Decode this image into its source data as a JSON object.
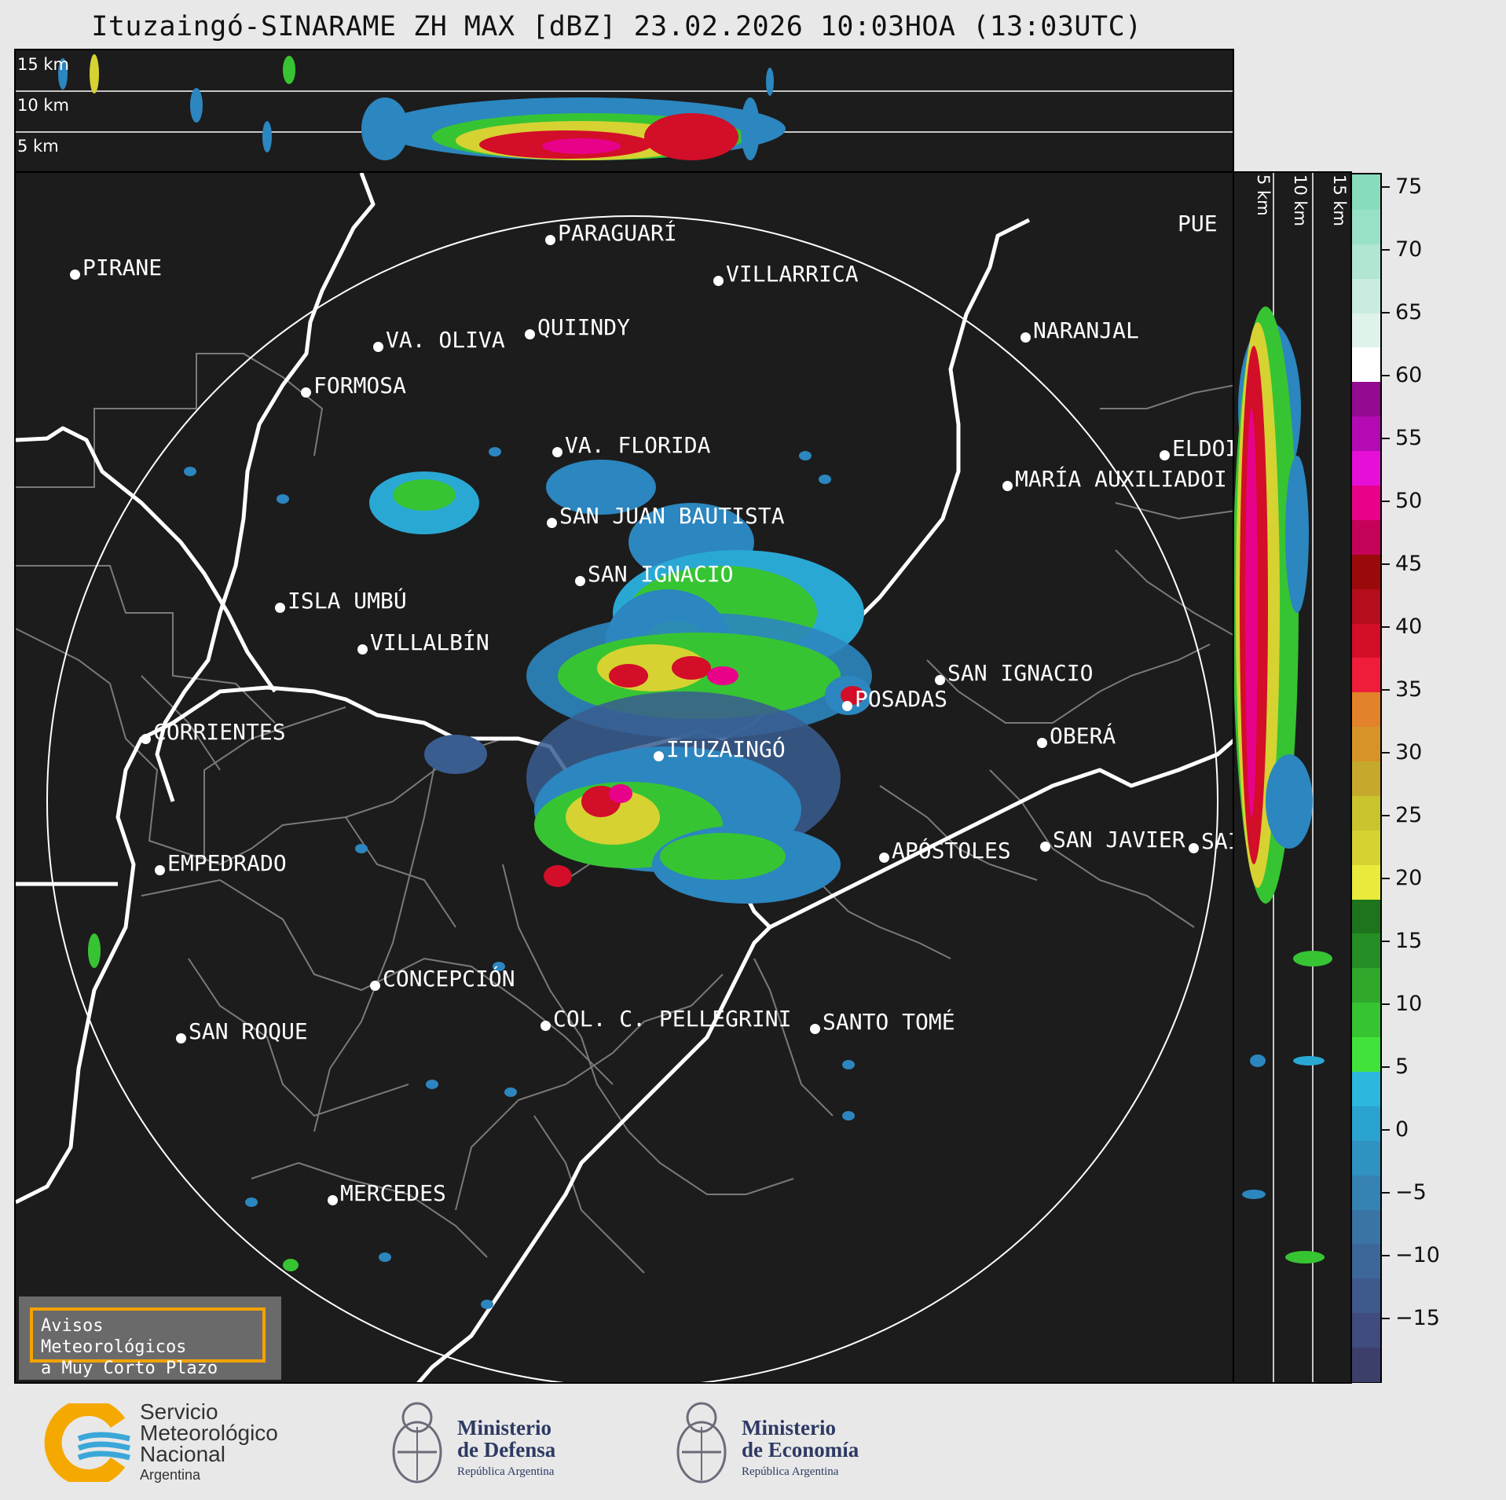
{
  "title": "Ituzaingó-SINARAME ZH MAX [dBZ] 23.02.2026 10:03HOA (13:03UTC)",
  "top_panel": {
    "height_labels": [
      "15 km",
      "10 km",
      "5 km"
    ]
  },
  "side_panel": {
    "height_labels": [
      "5 km",
      "10 km",
      "15 km"
    ]
  },
  "cities": [
    {
      "name": "PIRANE"
    },
    {
      "name": "PARAGUARÍ"
    },
    {
      "name": "VILLARRICA"
    },
    {
      "name": "QUIINDY"
    },
    {
      "name": "VA. OLIVA"
    },
    {
      "name": "NARANJAL"
    },
    {
      "name": "FORMOSA"
    },
    {
      "name": "PUE"
    },
    {
      "name": "VA. FLORIDA"
    },
    {
      "name": "ELDOI"
    },
    {
      "name": "MARÍA AUXILIADOI"
    },
    {
      "name": "SAN JUAN BAUTISTA"
    },
    {
      "name": "SAN IGNACIO"
    },
    {
      "name": "ISLA UMBÚ"
    },
    {
      "name": "VILLALBÍN"
    },
    {
      "name": "SAN IGNACIO"
    },
    {
      "name": "POSADAS"
    },
    {
      "name": "CORRIENTES"
    },
    {
      "name": "ITUZAINGÓ"
    },
    {
      "name": "OBERÁ"
    },
    {
      "name": "EMPEDRADO"
    },
    {
      "name": "APÓSTOLES"
    },
    {
      "name": "SAN JAVIER"
    },
    {
      "name": "SAI"
    },
    {
      "name": "CONCEPCIÓN"
    },
    {
      "name": "COL. C. PELLEGRINI"
    },
    {
      "name": "SANTO TOMÉ"
    },
    {
      "name": "SAN ROQUE"
    },
    {
      "name": "MERCEDES"
    }
  ],
  "colorbar": {
    "unit": "dBZ",
    "ticks": [
      "75",
      "70",
      "65",
      "60",
      "55",
      "50",
      "45",
      "40",
      "35",
      "30",
      "25",
      "20",
      "15",
      "10",
      "5",
      "0",
      "−5",
      "−10",
      "−15"
    ],
    "range": [
      -20,
      76
    ],
    "colors": [
      "#3d3f6b",
      "#3f4c7d",
      "#3e5a8c",
      "#3d6798",
      "#3a74a5",
      "#3682b2",
      "#2f92c0",
      "#2aa3cf",
      "#2cb7dd",
      "#41e33b",
      "#37c433",
      "#2fa82c",
      "#258e24",
      "#1d741c",
      "#e9ea3c",
      "#d6d232",
      "#c9c42e",
      "#c6a92c",
      "#d69428",
      "#e2822a",
      "#ef1c3a",
      "#d20e28",
      "#b40d1c",
      "#9b0a0a",
      "#c5025a",
      "#e8028a",
      "#e50fd8",
      "#b40ab3",
      "#940a90",
      "#ffffff",
      "#dff3ea",
      "#c8ece0",
      "#b0e6d2",
      "#99e1c6",
      "#86dcbb"
    ]
  },
  "avisos": {
    "line1": "Avisos Meteorológicos",
    "line2": "a Muy Corto Plazo"
  },
  "logos": {
    "smn": {
      "line1": "Servicio",
      "line2": "Meteorológico",
      "line3": "Nacional",
      "line4": "Argentina"
    },
    "defensa": {
      "line1": "Ministerio",
      "line2": "de Defensa",
      "line3": "República Argentina"
    },
    "economia": {
      "line1": "Ministerio",
      "line2": "de Economía",
      "line3": "República Argentina"
    }
  }
}
